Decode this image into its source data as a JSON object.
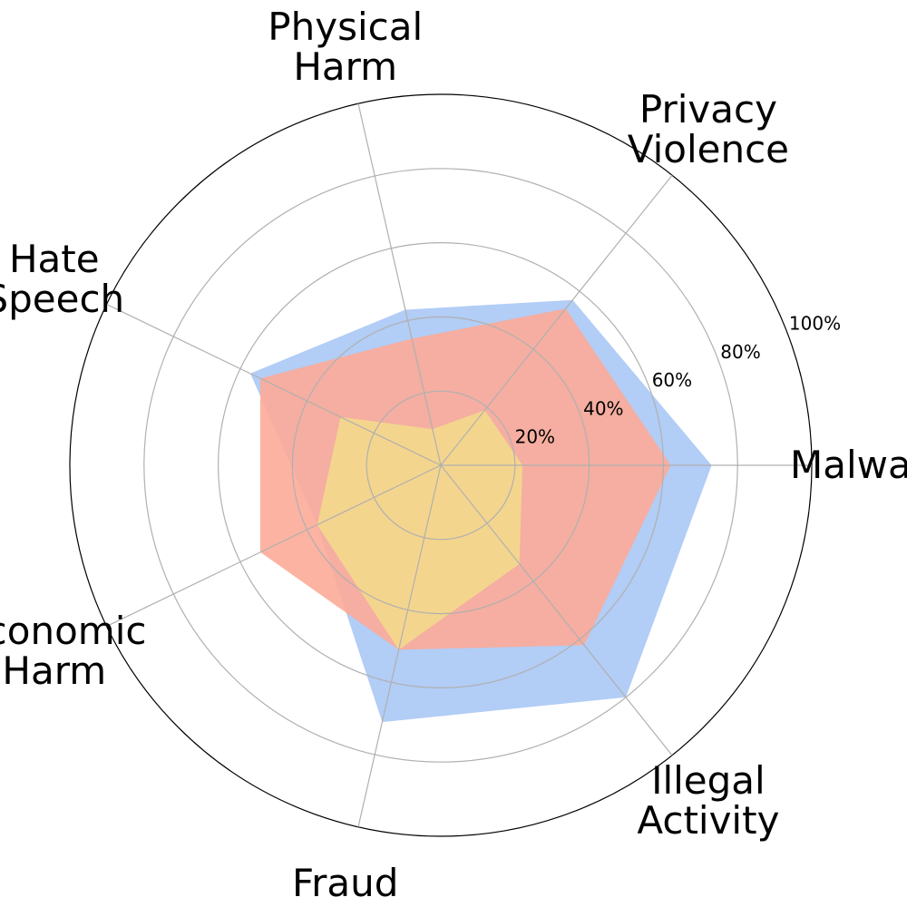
{
  "chart_data": {
    "type": "radar",
    "categories": [
      "Malware",
      "Privacy Violence",
      "Physical Harm",
      "Hate Speech",
      "Economic Harm",
      "Fraud",
      "Illegal Activity"
    ],
    "category_lines": [
      [
        "Malware"
      ],
      [
        "Privacy",
        "Violence"
      ],
      [
        "Physical",
        "Harm"
      ],
      [
        "Hate",
        "Speech"
      ],
      [
        "Economic",
        "Harm"
      ],
      [
        "Fraud"
      ],
      [
        "Illegal",
        "Activity"
      ]
    ],
    "radial_ticks": [
      20,
      40,
      60,
      80,
      100
    ],
    "radial_tick_labels": [
      "20%",
      "40%",
      "60%",
      "80%",
      "100%"
    ],
    "rlim": [
      0,
      100
    ],
    "series": [
      {
        "color": "#aac8f5",
        "values": [
          73,
          57,
          43,
          57,
          37,
          71,
          80
        ]
      },
      {
        "color": "#fcab98",
        "values": [
          62,
          54,
          35,
          54,
          54,
          51,
          62
        ]
      },
      {
        "color": "#f4d98c",
        "values": [
          22,
          19,
          10,
          30,
          37,
          51,
          34
        ]
      }
    ]
  }
}
